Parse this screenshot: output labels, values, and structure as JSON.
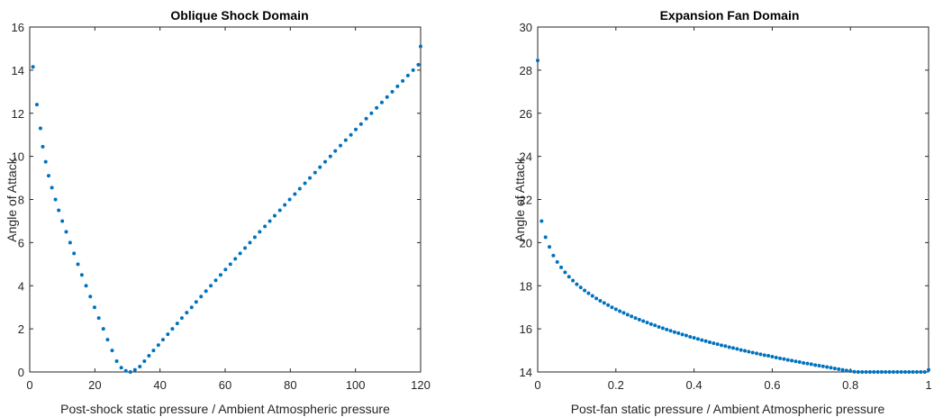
{
  "chart_data": [
    {
      "type": "scatter",
      "title": "Oblique Shock Domain",
      "xlabel": "Post-shock static pressure / Ambient Atmospheric pressure",
      "ylabel": "Angle of Attack",
      "xlim": [
        0,
        120
      ],
      "ylim": [
        0,
        16
      ],
      "xticks": [
        "0",
        "20",
        "40",
        "60",
        "80",
        "100",
        "120"
      ],
      "yticks": [
        "0",
        "2",
        "4",
        "6",
        "8",
        "10",
        "12",
        "14",
        "16"
      ],
      "grid": false,
      "series_color": "#0072BD",
      "x": [
        1.0,
        2.2,
        3.3,
        4.0,
        4.9,
        5.8,
        6.8,
        7.9,
        8.9,
        10.0,
        11.2,
        12.4,
        13.6,
        14.8,
        16.0,
        17.3,
        18.6,
        19.9,
        21.2,
        22.6,
        23.9,
        25.3,
        26.7,
        28.1,
        29.5,
        30.9,
        32.3,
        33.8,
        35.2,
        36.6,
        38.0,
        39.5,
        40.9,
        42.4,
        43.8,
        45.3,
        46.7,
        48.2,
        49.7,
        51.1,
        52.6,
        54.1,
        55.6,
        57.1,
        58.6,
        60.1,
        61.6,
        63.1,
        64.6,
        66.1,
        67.6,
        69.1,
        70.6,
        72.2,
        73.7,
        75.2,
        76.8,
        78.3,
        79.8,
        81.4,
        82.9,
        84.5,
        86.0,
        87.6,
        89.1,
        90.7,
        92.3,
        93.8,
        95.4,
        97.0,
        98.6,
        100.1,
        101.7,
        103.3,
        104.9,
        106.5,
        108.1,
        109.7,
        111.3,
        112.9,
        114.5,
        116.1,
        117.7,
        119.3,
        120.0
      ],
      "y": [
        14.15,
        12.4,
        11.3,
        10.45,
        9.75,
        9.1,
        8.55,
        8.0,
        7.5,
        7.0,
        6.5,
        6.0,
        5.5,
        5.0,
        4.5,
        4.0,
        3.5,
        3.0,
        2.5,
        2.0,
        1.5,
        1.0,
        0.5,
        0.2,
        0.05,
        0.0,
        0.1,
        0.25,
        0.5,
        0.75,
        1.0,
        1.25,
        1.5,
        1.75,
        2.0,
        2.25,
        2.5,
        2.75,
        3.0,
        3.25,
        3.5,
        3.75,
        4.0,
        4.25,
        4.5,
        4.75,
        5.0,
        5.25,
        5.5,
        5.75,
        6.0,
        6.25,
        6.5,
        6.75,
        7.0,
        7.25,
        7.5,
        7.75,
        8.0,
        8.25,
        8.5,
        8.75,
        9.0,
        9.25,
        9.5,
        9.75,
        10.0,
        10.25,
        10.5,
        10.75,
        11.0,
        11.25,
        11.5,
        11.75,
        12.0,
        12.25,
        12.5,
        12.75,
        13.0,
        13.25,
        13.5,
        13.75,
        14.0,
        14.25,
        15.1
      ]
    },
    {
      "type": "scatter",
      "title": "Expansion Fan Domain",
      "xlabel": "Post-fan static pressure / Ambient Atmospheric pressure",
      "ylabel": "Angle of Attack",
      "xlim": [
        0,
        1
      ],
      "ylim": [
        14,
        30
      ],
      "xticks": [
        "0",
        "0.2",
        "0.4",
        "0.6",
        "0.8",
        "1"
      ],
      "yticks": [
        "14",
        "16",
        "18",
        "20",
        "22",
        "24",
        "26",
        "28",
        "30"
      ],
      "grid": false,
      "series_color": "#0072BD",
      "x": [
        0.0,
        0.01,
        0.02,
        0.03,
        0.04,
        0.05,
        0.06,
        0.07,
        0.08,
        0.09,
        0.1,
        0.11,
        0.12,
        0.13,
        0.14,
        0.15,
        0.16,
        0.17,
        0.18,
        0.19,
        0.2,
        0.21,
        0.22,
        0.23,
        0.24,
        0.25,
        0.26,
        0.27,
        0.28,
        0.29,
        0.3,
        0.31,
        0.32,
        0.33,
        0.34,
        0.35,
        0.36,
        0.37,
        0.38,
        0.39,
        0.4,
        0.41,
        0.42,
        0.43,
        0.44,
        0.45,
        0.46,
        0.47,
        0.48,
        0.49,
        0.5,
        0.51,
        0.52,
        0.53,
        0.54,
        0.55,
        0.56,
        0.57,
        0.58,
        0.59,
        0.6,
        0.61,
        0.62,
        0.63,
        0.64,
        0.65,
        0.66,
        0.67,
        0.68,
        0.69,
        0.7,
        0.71,
        0.72,
        0.73,
        0.74,
        0.75,
        0.76,
        0.77,
        0.78,
        0.79,
        0.8,
        0.81,
        0.82,
        0.83,
        0.84,
        0.85,
        0.86,
        0.87,
        0.88,
        0.89,
        0.9,
        0.91,
        0.92,
        0.93,
        0.94,
        0.95,
        0.96,
        0.97,
        0.98,
        0.99,
        1.0
      ],
      "y": [
        28.45,
        21.0,
        20.25,
        19.8,
        19.4,
        19.1,
        18.85,
        18.62,
        18.42,
        18.24,
        18.07,
        17.92,
        17.78,
        17.65,
        17.53,
        17.41,
        17.3,
        17.2,
        17.1,
        17.0,
        16.91,
        16.82,
        16.74,
        16.66,
        16.58,
        16.5,
        16.43,
        16.36,
        16.29,
        16.22,
        16.16,
        16.09,
        16.03,
        15.97,
        15.91,
        15.85,
        15.8,
        15.74,
        15.69,
        15.63,
        15.58,
        15.53,
        15.48,
        15.43,
        15.38,
        15.33,
        15.29,
        15.24,
        15.2,
        15.15,
        15.11,
        15.07,
        15.02,
        14.98,
        14.94,
        14.9,
        14.86,
        14.82,
        14.78,
        14.75,
        14.71,
        14.67,
        14.63,
        14.6,
        14.56,
        14.53,
        14.49,
        14.46,
        14.42,
        14.39,
        14.36,
        14.32,
        14.29,
        14.26,
        14.23,
        14.2,
        14.16,
        14.13,
        14.1,
        14.07,
        14.04,
        14.01,
        13.98,
        13.95,
        13.93,
        13.9,
        13.87,
        13.84,
        13.81,
        13.79,
        13.76,
        13.73,
        13.71,
        13.68,
        13.65,
        13.63,
        13.6,
        13.58,
        13.55,
        13.53,
        14.1
      ]
    }
  ]
}
